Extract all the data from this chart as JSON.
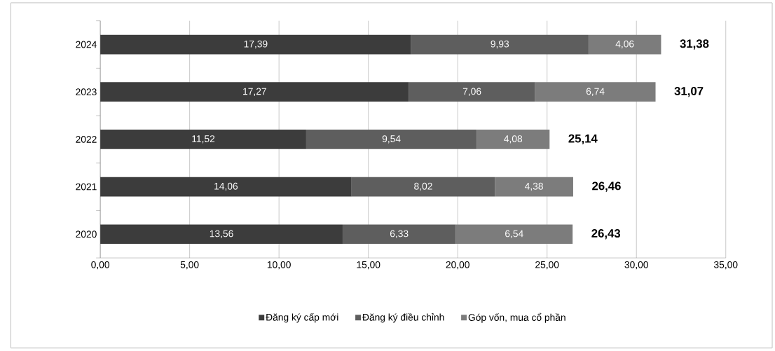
{
  "chart_data": {
    "type": "bar",
    "orientation": "horizontal",
    "stacked": true,
    "categories": [
      "2024",
      "2023",
      "2022",
      "2021",
      "2020"
    ],
    "series": [
      {
        "name": "Đăng ký cấp mới",
        "color": "#3c3c3c",
        "values": [
          17.39,
          17.27,
          11.52,
          14.06,
          13.56
        ],
        "value_labels": [
          "17,39",
          "17,27",
          "11,52",
          "14,06",
          "13,56"
        ]
      },
      {
        "name": "Đăng ký điều chỉnh",
        "color": "#5e5e5e",
        "values": [
          9.93,
          7.06,
          9.54,
          8.02,
          6.33
        ],
        "value_labels": [
          "9,93",
          "7,06",
          "9,54",
          "8,02",
          "6,33"
        ]
      },
      {
        "name": "Góp vốn, mua cổ phần",
        "color": "#7c7c7c",
        "values": [
          4.06,
          6.74,
          4.08,
          4.38,
          6.54
        ],
        "value_labels": [
          "4,06",
          "6,74",
          "4,08",
          "4,38",
          "6,54"
        ]
      }
    ],
    "totals": [
      "31,38",
      "31,07",
      "25,14",
      "26,46",
      "26,43"
    ],
    "xlim": [
      0,
      35
    ],
    "xticks": [
      {
        "value": 0,
        "label": "0,00"
      },
      {
        "value": 5,
        "label": "5,00"
      },
      {
        "value": 10,
        "label": "10,00"
      },
      {
        "value": 15,
        "label": "15,00"
      },
      {
        "value": 20,
        "label": "20,00"
      },
      {
        "value": 25,
        "label": "25,00"
      },
      {
        "value": 30,
        "label": "30,00"
      },
      {
        "value": 35,
        "label": "35,00"
      }
    ],
    "grid": "x",
    "legend": "bottom"
  }
}
